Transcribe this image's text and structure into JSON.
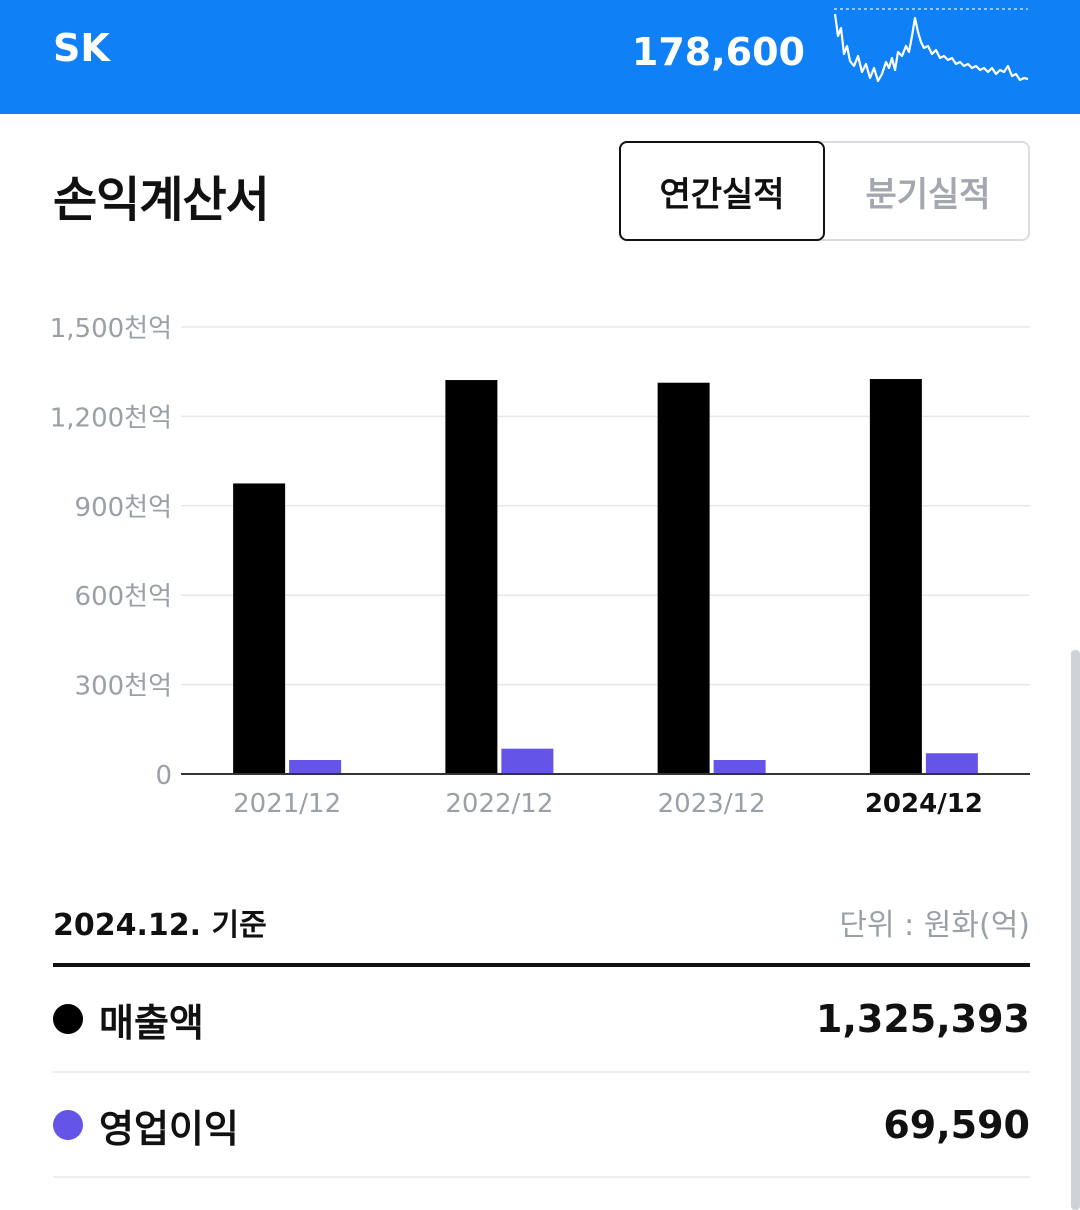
{
  "header": {
    "stock_name": "SK",
    "price": "178,600",
    "sparkline_color": "#ffffff",
    "background": "#0f80f5"
  },
  "section": {
    "title": "손익계산서",
    "tabs": [
      {
        "label": "연간실적",
        "selected": true
      },
      {
        "label": "분기실적",
        "selected": false
      }
    ]
  },
  "chart_data": {
    "type": "bar",
    "categories": [
      "2021/12",
      "2022/12",
      "2023/12",
      "2024/12"
    ],
    "highlighted_category": "2024/12",
    "series": [
      {
        "name": "매출액",
        "color": "#000000",
        "values": [
          975000,
          1322000,
          1313000,
          1325393
        ]
      },
      {
        "name": "영업이익",
        "color": "#6454e8",
        "values": [
          47000,
          85000,
          47000,
          69590
        ]
      }
    ],
    "ylim": [
      0,
      1500000
    ],
    "yticks": [
      {
        "value": 0,
        "label": "0"
      },
      {
        "value": 300000,
        "label": "300천억"
      },
      {
        "value": 600000,
        "label": "600천억"
      },
      {
        "value": 900000,
        "label": "900천억"
      },
      {
        "value": 1200000,
        "label": "1,200천억"
      },
      {
        "value": 1500000,
        "label": "1,500천억"
      }
    ],
    "grid": true
  },
  "summary": {
    "basis": "2024.12. 기준",
    "unit": "단위 : 원화(억)",
    "rows": [
      {
        "label": "매출액",
        "value": "1,325,393",
        "color": "#000000"
      },
      {
        "label": "영업이익",
        "value": "69,590",
        "color": "#6454e8"
      }
    ]
  }
}
